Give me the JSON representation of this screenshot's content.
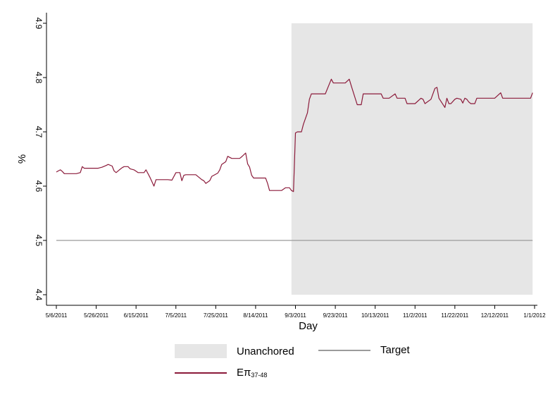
{
  "chart_data": {
    "type": "line",
    "xlabel": "Day",
    "ylabel": "%",
    "ylim": [
      4.4,
      4.9
    ],
    "yticks": [
      "4.4",
      "4.5",
      "4.6",
      "4.7",
      "4.8",
      "4.9"
    ],
    "xlim": [
      "2011-05-06",
      "2012-01-01"
    ],
    "xticks": [
      {
        "date": "2011-05-06",
        "label": "5/6/2011"
      },
      {
        "date": "2011-05-26",
        "label": "5/26/2011"
      },
      {
        "date": "2011-06-15",
        "label": "6/15/2011"
      },
      {
        "date": "2011-07-05",
        "label": "7/5/2011"
      },
      {
        "date": "2011-07-25",
        "label": "7/25/2011"
      },
      {
        "date": "2011-08-14",
        "label": "8/14/2011"
      },
      {
        "date": "2011-09-03",
        "label": "9/3/2011"
      },
      {
        "date": "2011-09-23",
        "label": "9/23/2011"
      },
      {
        "date": "2011-10-13",
        "label": "10/13/2011"
      },
      {
        "date": "2011-11-02",
        "label": "11/2/2011"
      },
      {
        "date": "2011-11-22",
        "label": "11/22/2011"
      },
      {
        "date": "2011-12-12",
        "label": "12/12/2011"
      },
      {
        "date": "2012-01-01",
        "label": "1/1/2012"
      }
    ],
    "shaded_region": {
      "name": "Unanchored",
      "x_start": "2011-09-01",
      "x_end": "2011-12-31",
      "y_range": [
        4.4,
        4.9
      ],
      "color": "#e6e6e6"
    },
    "series": [
      {
        "name": "Target",
        "color": "#9b9b9b",
        "points": [
          [
            "2011-05-06",
            4.5
          ],
          [
            "2011-12-31",
            4.5
          ]
        ]
      },
      {
        "name": "Eπ37-48",
        "color": "#8b1a3a",
        "points": [
          [
            "2011-05-06",
            4.626
          ],
          [
            "2011-05-07",
            4.628
          ],
          [
            "2011-05-08",
            4.63
          ],
          [
            "2011-05-09",
            4.627
          ],
          [
            "2011-05-10",
            4.623
          ],
          [
            "2011-05-12",
            4.623
          ],
          [
            "2011-05-14",
            4.623
          ],
          [
            "2011-05-16",
            4.623
          ],
          [
            "2011-05-18",
            4.625
          ],
          [
            "2011-05-19",
            4.636
          ],
          [
            "2011-05-20",
            4.633
          ],
          [
            "2011-05-23",
            4.633
          ],
          [
            "2011-05-27",
            4.633
          ],
          [
            "2011-05-29",
            4.635
          ],
          [
            "2011-05-31",
            4.638
          ],
          [
            "2011-06-01",
            4.64
          ],
          [
            "2011-06-03",
            4.637
          ],
          [
            "2011-06-04",
            4.628
          ],
          [
            "2011-06-05",
            4.625
          ],
          [
            "2011-06-07",
            4.631
          ],
          [
            "2011-06-08",
            4.634
          ],
          [
            "2011-06-09",
            4.636
          ],
          [
            "2011-06-11",
            4.636
          ],
          [
            "2011-06-12",
            4.632
          ],
          [
            "2011-06-14",
            4.63
          ],
          [
            "2011-06-16",
            4.625
          ],
          [
            "2011-06-19",
            4.625
          ],
          [
            "2011-06-20",
            4.63
          ],
          [
            "2011-06-22",
            4.616
          ],
          [
            "2011-06-24",
            4.6
          ],
          [
            "2011-06-25",
            4.612
          ],
          [
            "2011-06-27",
            4.612
          ],
          [
            "2011-07-01",
            4.612
          ],
          [
            "2011-07-03",
            4.611
          ],
          [
            "2011-07-05",
            4.625
          ],
          [
            "2011-07-07",
            4.625
          ],
          [
            "2011-07-08",
            4.61
          ],
          [
            "2011-07-09",
            4.62
          ],
          [
            "2011-07-10",
            4.621
          ],
          [
            "2011-07-15",
            4.621
          ],
          [
            "2011-07-18",
            4.612
          ],
          [
            "2011-07-19",
            4.61
          ],
          [
            "2011-07-20",
            4.605
          ],
          [
            "2011-07-22",
            4.61
          ],
          [
            "2011-07-23",
            4.618
          ],
          [
            "2011-07-24",
            4.62
          ],
          [
            "2011-07-26",
            4.624
          ],
          [
            "2011-07-27",
            4.63
          ],
          [
            "2011-07-28",
            4.64
          ],
          [
            "2011-07-30",
            4.645
          ],
          [
            "2011-07-31",
            4.655
          ],
          [
            "2011-08-01",
            4.653
          ],
          [
            "2011-08-02",
            4.651
          ],
          [
            "2011-08-06",
            4.651
          ],
          [
            "2011-08-07",
            4.654
          ],
          [
            "2011-08-09",
            4.661
          ],
          [
            "2011-08-10",
            4.641
          ],
          [
            "2011-08-11",
            4.635
          ],
          [
            "2011-08-12",
            4.62
          ],
          [
            "2011-08-13",
            4.615
          ],
          [
            "2011-08-19",
            4.615
          ],
          [
            "2011-08-20",
            4.605
          ],
          [
            "2011-08-21",
            4.592
          ],
          [
            "2011-08-27",
            4.592
          ],
          [
            "2011-08-29",
            4.597
          ],
          [
            "2011-08-31",
            4.597
          ],
          [
            "2011-09-01",
            4.592
          ],
          [
            "2011-09-02",
            4.59
          ],
          [
            "2011-09-03",
            4.698
          ],
          [
            "2011-09-04",
            4.7
          ],
          [
            "2011-09-05",
            4.7
          ],
          [
            "2011-09-06",
            4.7
          ],
          [
            "2011-09-07",
            4.714
          ],
          [
            "2011-09-09",
            4.735
          ],
          [
            "2011-09-10",
            4.76
          ],
          [
            "2011-09-11",
            4.77
          ],
          [
            "2011-09-18",
            4.77
          ],
          [
            "2011-09-21",
            4.797
          ],
          [
            "2011-09-22",
            4.79
          ],
          [
            "2011-09-28",
            4.79
          ],
          [
            "2011-09-30",
            4.797
          ],
          [
            "2011-10-01",
            4.785
          ],
          [
            "2011-10-04",
            4.75
          ],
          [
            "2011-10-06",
            4.75
          ],
          [
            "2011-10-07",
            4.77
          ],
          [
            "2011-10-16",
            4.77
          ],
          [
            "2011-10-17",
            4.762
          ],
          [
            "2011-10-20",
            4.762
          ],
          [
            "2011-10-23",
            4.77
          ],
          [
            "2011-10-24",
            4.762
          ],
          [
            "2011-10-28",
            4.762
          ],
          [
            "2011-10-29",
            4.752
          ],
          [
            "2011-11-02",
            4.752
          ],
          [
            "2011-11-05",
            4.762
          ],
          [
            "2011-11-06",
            4.76
          ],
          [
            "2011-11-07",
            4.752
          ],
          [
            "2011-11-10",
            4.76
          ],
          [
            "2011-11-12",
            4.78
          ],
          [
            "2011-11-13",
            4.782
          ],
          [
            "2011-11-14",
            4.762
          ],
          [
            "2011-11-17",
            4.745
          ],
          [
            "2011-11-18",
            4.762
          ],
          [
            "2011-11-19",
            4.752
          ],
          [
            "2011-11-20",
            4.752
          ],
          [
            "2011-11-22",
            4.76
          ],
          [
            "2011-11-23",
            4.762
          ],
          [
            "2011-11-25",
            4.76
          ],
          [
            "2011-11-26",
            4.753
          ],
          [
            "2011-11-27",
            4.762
          ],
          [
            "2011-11-28",
            4.76
          ],
          [
            "2011-11-29",
            4.755
          ],
          [
            "2011-11-30",
            4.752
          ],
          [
            "2011-12-02",
            4.752
          ],
          [
            "2011-12-03",
            4.762
          ],
          [
            "2011-12-12",
            4.762
          ],
          [
            "2011-12-15",
            4.772
          ],
          [
            "2011-12-16",
            4.762
          ],
          [
            "2011-12-30",
            4.762
          ],
          [
            "2011-12-31",
            4.772
          ]
        ]
      }
    ],
    "legend": {
      "position": "bottom",
      "items": [
        {
          "label": "Unanchored",
          "kind": "box"
        },
        {
          "label": "Target",
          "kind": "line"
        },
        {
          "label": "Eπ",
          "sub": "37-48",
          "kind": "line"
        }
      ]
    },
    "grid": false
  }
}
